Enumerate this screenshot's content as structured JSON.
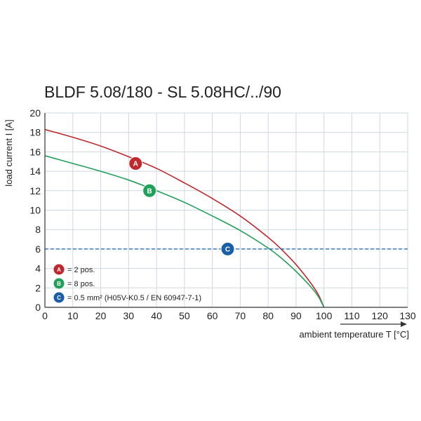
{
  "chart_data": {
    "type": "line",
    "title": "BLDF 5.08/180 - SL 5.08HC/../90",
    "xlabel": "ambient temperature T [°C]",
    "ylabel": "load current I [A]",
    "xlim": [
      0,
      130
    ],
    "ylim": [
      0,
      20
    ],
    "x_ticks": [
      "0",
      "10",
      "20",
      "30",
      "40",
      "50",
      "60",
      "70",
      "80",
      "90",
      "100",
      "110",
      "120",
      "130"
    ],
    "y_ticks": [
      "0",
      "2",
      "4",
      "6",
      "8",
      "10",
      "12",
      "14",
      "16",
      "18",
      "20"
    ],
    "grid": true,
    "series": [
      {
        "name": "A",
        "label": "= 2 pos.",
        "color": "#c0282d",
        "x": [
          0,
          10,
          20,
          30,
          40,
          50,
          60,
          70,
          80,
          85,
          90,
          95,
          98,
          100
        ],
        "y": [
          18.3,
          17.5,
          16.6,
          15.5,
          14.3,
          12.8,
          11.2,
          9.4,
          7.2,
          5.9,
          4.4,
          2.6,
          1.3,
          0
        ]
      },
      {
        "name": "B",
        "label": "= 8 pos.",
        "color": "#21a05a",
        "x": [
          0,
          10,
          20,
          30,
          40,
          50,
          60,
          70,
          80,
          85,
          90,
          95,
          98,
          100
        ],
        "y": [
          15.6,
          14.8,
          14.0,
          13.1,
          12.0,
          10.8,
          9.4,
          7.9,
          6.1,
          5.0,
          3.7,
          2.2,
          1.1,
          0
        ]
      },
      {
        "name": "C",
        "label": "= 0.5 mm² (H05V-K0.5 / EN 60947-7-1)",
        "color": "#1a5ea8",
        "style": "dashed",
        "x": [
          0,
          130
        ],
        "y": [
          6,
          6
        ]
      }
    ],
    "markers": [
      {
        "letter": "A",
        "x": 32.5,
        "y": 14.8,
        "color": "#c0282d"
      },
      {
        "letter": "B",
        "x": 37.5,
        "y": 12.0,
        "color": "#21a05a"
      },
      {
        "letter": "C",
        "x": 65.5,
        "y": 6.0,
        "color": "#1a5ea8"
      }
    ],
    "legend_placement": "bottom-left",
    "colors": {
      "grid": "#cfd8de",
      "axis": "#333333"
    }
  }
}
